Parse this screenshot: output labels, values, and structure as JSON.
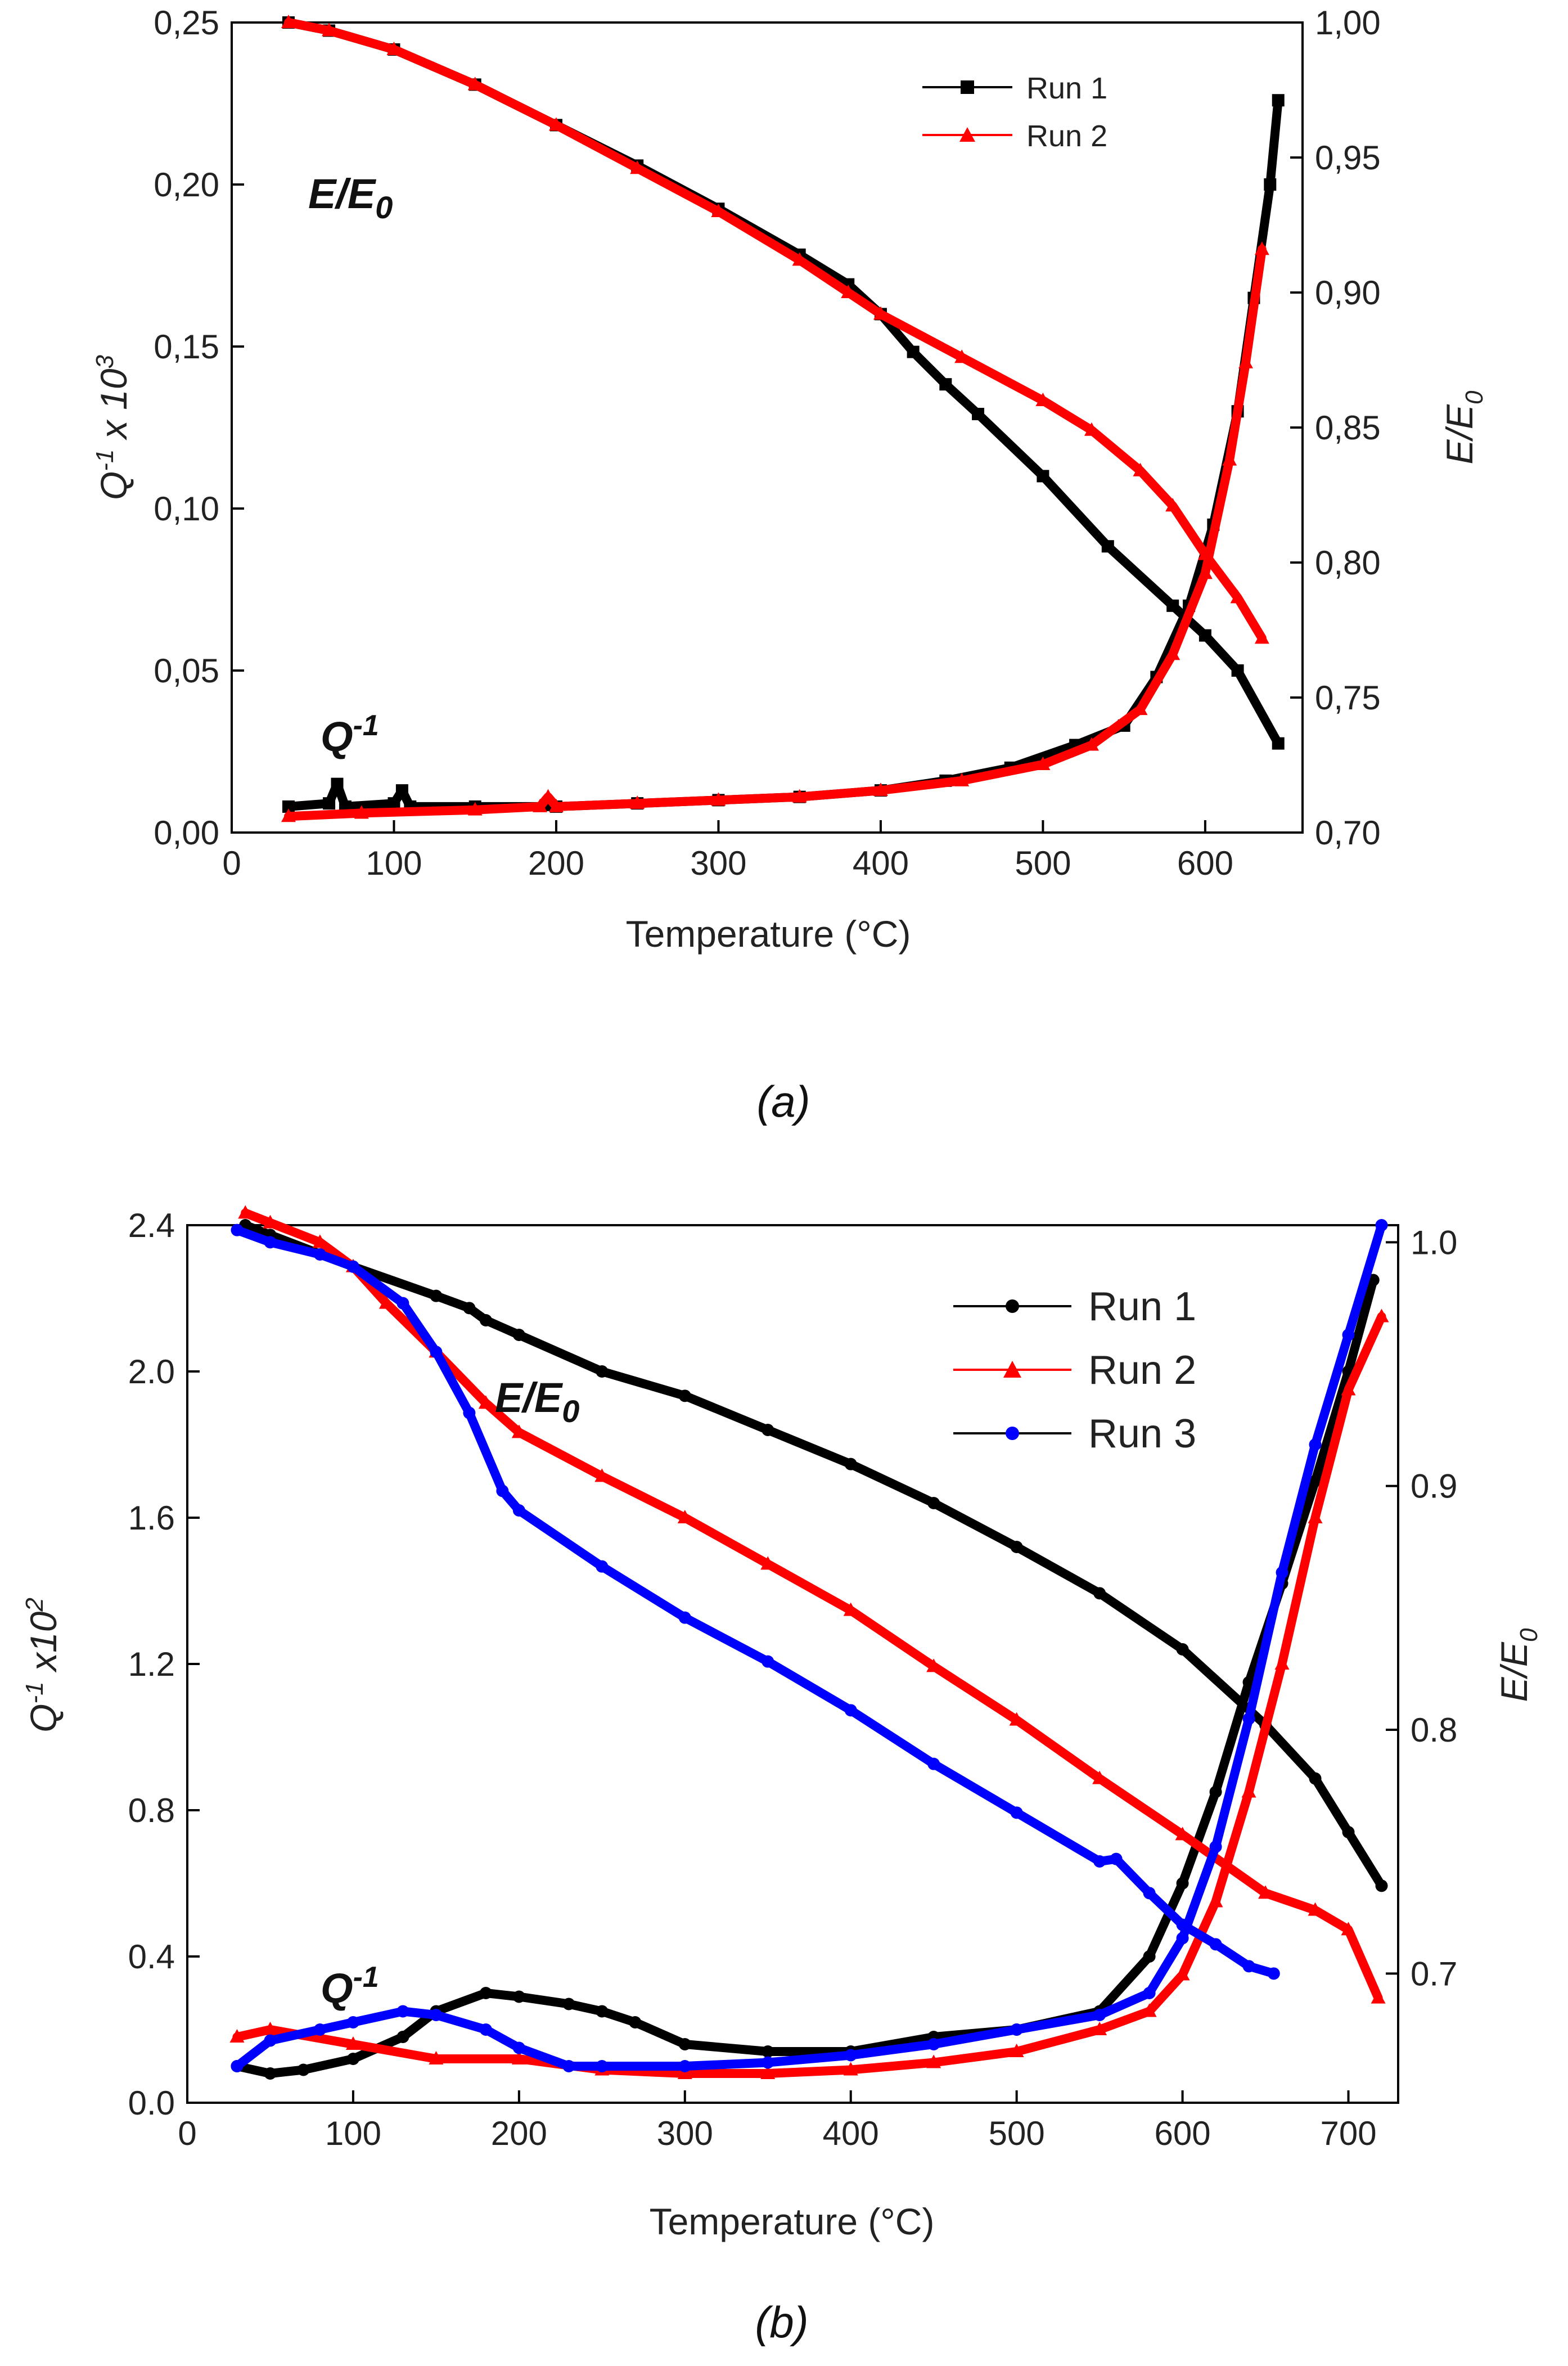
{
  "chart_data": [
    {
      "type": "line",
      "panel": "a",
      "caption": "(a)",
      "xlabel": "Temperature (°C)",
      "ylabel_left": "Q-1 x 10^3",
      "ylabel_left_parts": {
        "base": "Q",
        "sup": "-1",
        "mid": " x 10",
        "sup2": "3"
      },
      "ylabel_right": "E/E0",
      "ylabel_right_parts": {
        "base": "E/E",
        "sub": "0"
      },
      "xlim": [
        0,
        660
      ],
      "ylim_left": [
        0,
        0.25
      ],
      "ylim_right": [
        0.7,
        1.0
      ],
      "xticks": [
        "0",
        "100",
        "200",
        "300",
        "400",
        "500",
        "600"
      ],
      "yticks_left": [
        "0,00",
        "0,05",
        "0,10",
        "0,15",
        "0,20",
        "0,25"
      ],
      "yticks_right": [
        "0,70",
        "0,75",
        "0,80",
        "0,85",
        "0,90",
        "0,95",
        "1,00"
      ],
      "annotations": {
        "ee0": {
          "base": "E/E",
          "sub": "0"
        },
        "q": {
          "base": "Q",
          "sup": "-1"
        }
      },
      "legend_position": "top-right",
      "series": [
        {
          "name": "Run 1",
          "color": "#000000",
          "marker": "square",
          "ee0": {
            "x": [
              35,
              60,
              100,
              150,
              200,
              250,
              300,
              350,
              380,
              400,
              420,
              440,
              460,
              500,
              540,
              580,
              600,
              620,
              645
            ],
            "y": [
              1.0,
              0.997,
              0.99,
              0.977,
              0.962,
              0.947,
              0.931,
              0.914,
              0.903,
              0.892,
              0.878,
              0.866,
              0.855,
              0.832,
              0.806,
              0.784,
              0.773,
              0.76,
              0.733
            ]
          },
          "q": {
            "x": [
              35,
              60,
              65,
              70,
              100,
              105,
              110,
              150,
              200,
              250,
              300,
              350,
              400,
              440,
              480,
              520,
              550,
              570,
              590,
              605,
              620,
              630,
              640,
              645
            ],
            "y": [
              0.008,
              0.009,
              0.015,
              0.008,
              0.009,
              0.013,
              0.008,
              0.008,
              0.008,
              0.009,
              0.01,
              0.011,
              0.013,
              0.016,
              0.02,
              0.027,
              0.033,
              0.048,
              0.07,
              0.095,
              0.13,
              0.165,
              0.2,
              0.226
            ]
          }
        },
        {
          "name": "Run 2",
          "color": "#ff0000",
          "marker": "triangle",
          "ee0": {
            "x": [
              35,
              60,
              100,
              150,
              200,
              250,
              300,
              350,
              380,
              400,
              450,
              500,
              530,
              560,
              580,
              600,
              620,
              635
            ],
            "y": [
              1.0,
              0.997,
              0.99,
              0.977,
              0.962,
              0.946,
              0.93,
              0.912,
              0.9,
              0.892,
              0.876,
              0.86,
              0.849,
              0.834,
              0.821,
              0.803,
              0.787,
              0.772
            ]
          },
          "q": {
            "x": [
              35,
              80,
              150,
              190,
              195,
              200,
              250,
              300,
              350,
              400,
              450,
              500,
              530,
              560,
              580,
              600,
              615,
              625,
              635
            ],
            "y": [
              0.005,
              0.006,
              0.007,
              0.008,
              0.011,
              0.008,
              0.009,
              0.01,
              0.011,
              0.013,
              0.016,
              0.021,
              0.027,
              0.038,
              0.055,
              0.08,
              0.115,
              0.145,
              0.18
            ]
          }
        }
      ]
    },
    {
      "type": "line",
      "panel": "b",
      "caption": "(b)",
      "xlabel": "Temperature (°C)",
      "ylabel_left": "Q-1 x10^2",
      "ylabel_left_parts": {
        "base": "Q",
        "sup": "-1",
        "mid": " x10",
        "sup2": "2"
      },
      "ylabel_right": "E/E0",
      "ylabel_right_parts": {
        "base": "E/E",
        "sub": "0"
      },
      "xlim": [
        0,
        730
      ],
      "ylim_left": [
        0,
        2.4
      ],
      "ylim_right": [
        0.647,
        1.007
      ],
      "xticks": [
        "0",
        "100",
        "200",
        "300",
        "400",
        "500",
        "600",
        "700"
      ],
      "yticks_left": [
        "0.0",
        "0.4",
        "0.8",
        "1.2",
        "1.6",
        "2.0",
        "2.4"
      ],
      "yticks_right": [
        "0.7",
        "0.8",
        "0.9",
        "1.0"
      ],
      "annotations": {
        "ee0": {
          "base": "E/E",
          "sub": "0"
        },
        "q": {
          "base": "Q",
          "sup": "-1"
        }
      },
      "legend_position": "top-right",
      "series": [
        {
          "name": "Run 1",
          "color": "#000000",
          "marker": "circle",
          "ee0": {
            "x": [
              35,
              50,
              100,
              150,
              170,
              180,
              200,
              250,
              300,
              350,
              400,
              450,
              500,
              550,
              600,
              650,
              680,
              700,
              720
            ],
            "y": [
              1.007,
              1.003,
              0.99,
              0.978,
              0.973,
              0.968,
              0.962,
              0.947,
              0.937,
              0.923,
              0.909,
              0.893,
              0.875,
              0.856,
              0.833,
              0.802,
              0.78,
              0.758,
              0.736
            ]
          },
          "q": {
            "x": [
              30,
              50,
              70,
              100,
              130,
              150,
              180,
              200,
              230,
              250,
              270,
              300,
              350,
              400,
              450,
              500,
              550,
              580,
              600,
              620,
              640,
              660,
              680,
              700,
              715
            ],
            "y": [
              0.1,
              0.08,
              0.09,
              0.12,
              0.18,
              0.25,
              0.3,
              0.29,
              0.27,
              0.25,
              0.22,
              0.16,
              0.14,
              0.14,
              0.18,
              0.2,
              0.25,
              0.4,
              0.6,
              0.85,
              1.15,
              1.42,
              1.7,
              2.0,
              2.25
            ]
          }
        },
        {
          "name": "Run 2",
          "color": "#ff0000",
          "marker": "triangle",
          "ee0": {
            "x": [
              35,
              50,
              80,
              100,
              120,
              150,
              180,
              200,
              250,
              300,
              350,
              400,
              450,
              500,
              550,
              600,
              650,
              680,
              700,
              718
            ],
            "y": [
              1.012,
              1.008,
              1.0,
              0.99,
              0.975,
              0.955,
              0.934,
              0.922,
              0.904,
              0.887,
              0.868,
              0.849,
              0.826,
              0.804,
              0.78,
              0.757,
              0.733,
              0.726,
              0.718,
              0.69
            ]
          },
          "q": {
            "x": [
              30,
              50,
              100,
              150,
              200,
              250,
              300,
              350,
              400,
              450,
              500,
              550,
              580,
              600,
              620,
              640,
              660,
              680,
              700,
              720
            ],
            "y": [
              0.18,
              0.2,
              0.16,
              0.12,
              0.12,
              0.09,
              0.08,
              0.08,
              0.09,
              0.11,
              0.14,
              0.2,
              0.25,
              0.35,
              0.55,
              0.85,
              1.2,
              1.6,
              1.95,
              2.15
            ]
          }
        },
        {
          "name": "Run 3",
          "color": "#0000ff",
          "marker": "circle",
          "ee0": {
            "x": [
              30,
              50,
              80,
              100,
              130,
              150,
              170,
              190,
              200,
              250,
              300,
              350,
              400,
              450,
              500,
              550,
              560,
              580,
              600,
              620,
              640,
              655
            ],
            "y": [
              1.005,
              1.0,
              0.995,
              0.99,
              0.975,
              0.955,
              0.93,
              0.898,
              0.89,
              0.867,
              0.846,
              0.828,
              0.808,
              0.786,
              0.766,
              0.746,
              0.747,
              0.733,
              0.72,
              0.712,
              0.703,
              0.7
            ]
          },
          "q": {
            "x": [
              30,
              50,
              80,
              100,
              130,
              150,
              180,
              200,
              230,
              250,
              300,
              350,
              400,
              450,
              500,
              550,
              580,
              600,
              620,
              640,
              660,
              680,
              700,
              720
            ],
            "y": [
              0.1,
              0.17,
              0.2,
              0.22,
              0.25,
              0.24,
              0.2,
              0.15,
              0.1,
              0.1,
              0.1,
              0.11,
              0.13,
              0.16,
              0.2,
              0.24,
              0.3,
              0.45,
              0.7,
              1.05,
              1.45,
              1.8,
              2.1,
              2.4
            ]
          }
        }
      ]
    }
  ]
}
